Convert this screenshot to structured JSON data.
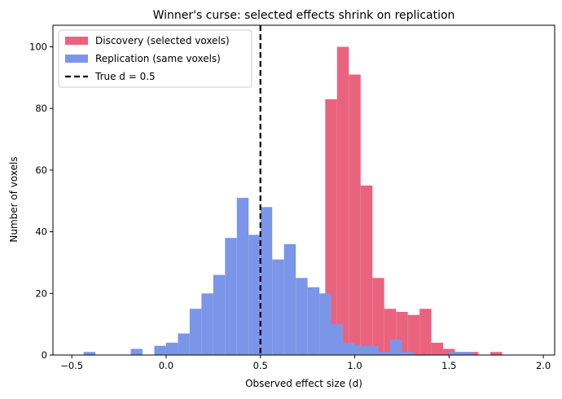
{
  "chart_data": {
    "type": "bar",
    "title": "Winner's curse: selected effects shrink on replication",
    "xlabel": "Observed effect size (d)",
    "ylabel": "Number of voxels",
    "xlim": [
      -0.6,
      2.06
    ],
    "ylim": [
      0,
      107
    ],
    "xticks": [
      -0.5,
      0.0,
      0.5,
      1.0,
      1.5,
      2.0
    ],
    "xtick_labels": [
      "−0.5",
      "0.0",
      "0.5",
      "1.0",
      "1.5",
      "2.0"
    ],
    "yticks": [
      0,
      20,
      40,
      60,
      80,
      100
    ],
    "ytick_labels": [
      "0",
      "20",
      "40",
      "60",
      "80",
      "100"
    ],
    "grid": false,
    "legend_position": "top-left",
    "series": [
      {
        "name": "Discovery (selected voxels)",
        "color": "#e9637f",
        "bin_width": 0.0625,
        "bins_start": [
          0.8438,
          0.9063,
          0.9688,
          1.0313,
          1.0938,
          1.1563,
          1.2188,
          1.2813,
          1.3438,
          1.4063,
          1.4688,
          1.5313,
          1.5938,
          1.6563,
          1.7188
        ],
        "values": [
          83,
          100,
          91,
          55,
          25,
          15,
          14,
          13,
          15,
          4,
          2,
          1,
          1,
          0,
          1
        ]
      },
      {
        "name": "Replication (same voxels)",
        "color": "#7b96e8",
        "bin_width": 0.0625,
        "bins_start": [
          -0.4375,
          -0.375,
          -0.3125,
          -0.25,
          -0.1875,
          -0.125,
          -0.0625,
          0.0,
          0.0625,
          0.125,
          0.1875,
          0.25,
          0.3125,
          0.375,
          0.4375,
          0.5,
          0.5625,
          0.625,
          0.6875,
          0.75,
          0.8125,
          0.875,
          0.9375,
          1.0,
          1.0625,
          1.125,
          1.1875,
          1.25,
          1.3125,
          1.375,
          1.4375,
          1.5,
          1.5625
        ],
        "values": [
          1,
          0,
          0,
          0,
          2,
          0,
          3,
          4,
          7,
          15,
          20,
          26,
          38,
          51,
          39,
          48,
          31,
          36,
          25,
          22,
          20,
          10,
          4,
          3,
          3,
          1,
          5,
          1,
          0,
          0,
          0,
          1,
          1
        ]
      }
    ],
    "overlap_color": "#8a6fbf",
    "reference_line": {
      "x": 0.5,
      "label": "True d = 0.5",
      "style": "dashed",
      "color": "#000000"
    }
  }
}
